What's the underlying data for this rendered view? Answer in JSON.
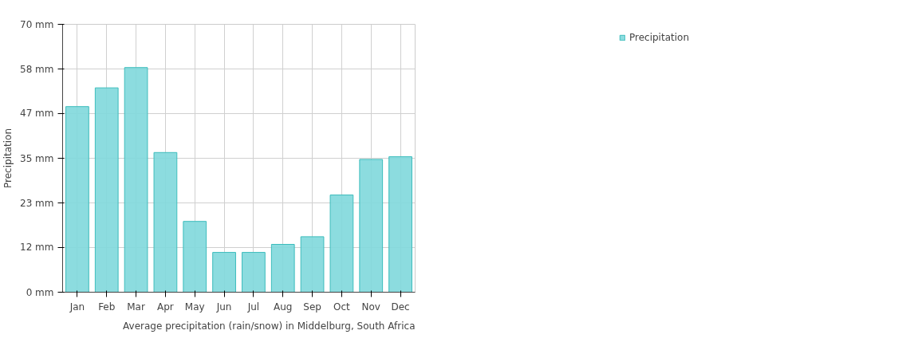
{
  "chart_data": {
    "type": "bar",
    "ylabel": "Precipitation",
    "categories": [
      "Jan",
      "Feb",
      "Mar",
      "Apr",
      "May",
      "Jun",
      "Jul",
      "Aug",
      "Sep",
      "Oct",
      "Nov",
      "Dec"
    ],
    "series": [
      {
        "name": "Precipitation",
        "color": "#80d8dc",
        "values": [
          48.5,
          53.4,
          58.7,
          36.5,
          18.5,
          10.4,
          10.4,
          12.5,
          14.5,
          25.4,
          34.7,
          35.4
        ]
      }
    ],
    "ylim": [
      0,
      70
    ],
    "yticks": [
      {
        "value": 0,
        "label": "0 mm"
      },
      {
        "value": 11.67,
        "label": "12 mm"
      },
      {
        "value": 23.33,
        "label": "23 mm"
      },
      {
        "value": 35,
        "label": "35 mm"
      },
      {
        "value": 46.67,
        "label": "47 mm"
      },
      {
        "value": 58.33,
        "label": "58 mm"
      },
      {
        "value": 70,
        "label": "70 mm"
      }
    ],
    "grid": true,
    "legend": "top right",
    "annotations": [
      "Average precipitation (rain/snow) in Middelburg, South Africa"
    ]
  }
}
